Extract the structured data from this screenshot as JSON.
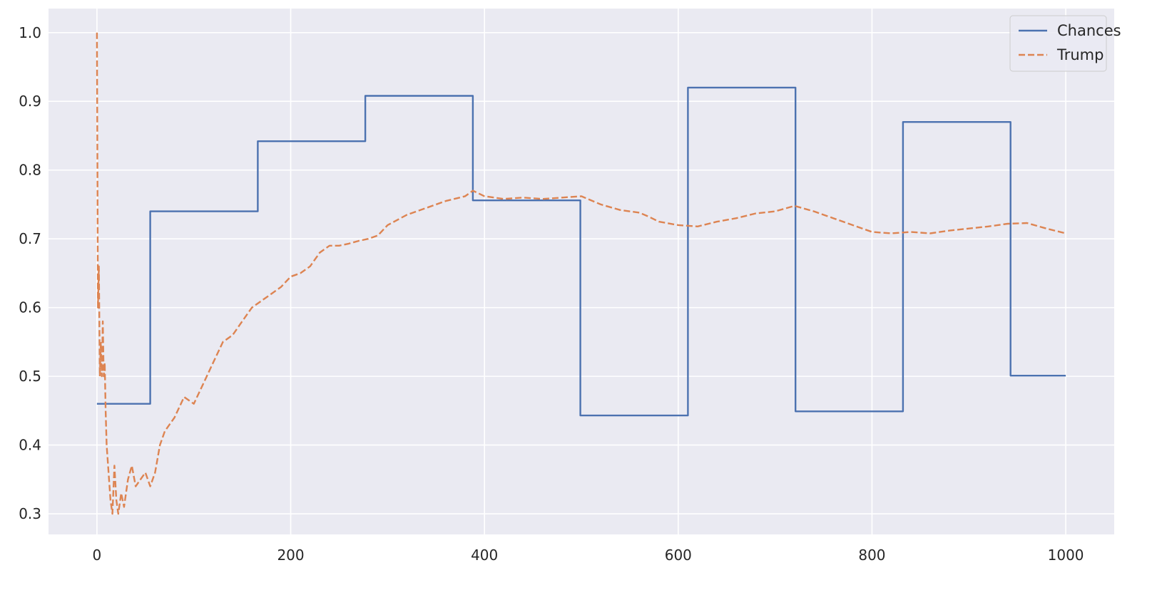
{
  "chart_data": {
    "type": "line",
    "title": "",
    "xlabel": "",
    "ylabel": "",
    "xlim": [
      -50,
      1050
    ],
    "ylim": [
      0.27,
      1.035
    ],
    "xticks": [
      0,
      200,
      400,
      600,
      800,
      1000
    ],
    "yticks": [
      0.3,
      0.4,
      0.5,
      0.6,
      0.7,
      0.8,
      0.9,
      1.0
    ],
    "xtick_labels": [
      "0",
      "200",
      "400",
      "600",
      "800",
      "1000"
    ],
    "ytick_labels": [
      "0.3",
      "0.4",
      "0.5",
      "0.6",
      "0.7",
      "0.8",
      "0.9",
      "1.0"
    ],
    "grid": true,
    "legend_position": "top-right",
    "background": "#eaeaf2",
    "series": [
      {
        "name": "Chances",
        "style": "solid",
        "color": "#4c72b0",
        "x": [
          0,
          55,
          55,
          166,
          166,
          277,
          277,
          388,
          388,
          499,
          499,
          610,
          610,
          721,
          721,
          832,
          832,
          943,
          943,
          1000
        ],
        "y": [
          0.46,
          0.46,
          0.74,
          0.74,
          0.842,
          0.842,
          0.908,
          0.908,
          0.756,
          0.756,
          0.443,
          0.443,
          0.92,
          0.92,
          0.449,
          0.449,
          0.87,
          0.87,
          0.501,
          0.501
        ]
      },
      {
        "name": "Trump",
        "style": "dashed",
        "color": "#dd8452",
        "x": [
          0,
          1,
          2,
          3,
          4,
          5,
          6,
          7,
          8,
          9,
          10,
          12,
          14,
          16,
          18,
          20,
          22,
          25,
          28,
          32,
          36,
          40,
          45,
          50,
          55,
          60,
          65,
          70,
          80,
          90,
          100,
          110,
          120,
          130,
          140,
          150,
          160,
          170,
          180,
          190,
          200,
          210,
          220,
          230,
          240,
          250,
          260,
          270,
          280,
          290,
          300,
          320,
          340,
          360,
          380,
          388,
          400,
          420,
          440,
          460,
          480,
          500,
          520,
          540,
          560,
          570,
          580,
          600,
          620,
          640,
          660,
          680,
          700,
          720,
          740,
          760,
          780,
          800,
          820,
          840,
          860,
          880,
          900,
          920,
          940,
          960,
          980,
          1000
        ],
        "y": [
          1.0,
          0.6,
          0.66,
          0.5,
          0.55,
          0.5,
          0.58,
          0.5,
          0.52,
          0.45,
          0.4,
          0.36,
          0.32,
          0.3,
          0.37,
          0.32,
          0.3,
          0.33,
          0.31,
          0.35,
          0.37,
          0.34,
          0.35,
          0.36,
          0.34,
          0.36,
          0.4,
          0.42,
          0.44,
          0.47,
          0.46,
          0.49,
          0.52,
          0.55,
          0.56,
          0.58,
          0.6,
          0.61,
          0.62,
          0.63,
          0.645,
          0.65,
          0.66,
          0.68,
          0.69,
          0.69,
          0.693,
          0.697,
          0.7,
          0.705,
          0.72,
          0.735,
          0.745,
          0.755,
          0.762,
          0.77,
          0.762,
          0.758,
          0.76,
          0.758,
          0.76,
          0.762,
          0.75,
          0.742,
          0.738,
          0.732,
          0.725,
          0.72,
          0.718,
          0.725,
          0.73,
          0.737,
          0.74,
          0.748,
          0.74,
          0.73,
          0.72,
          0.71,
          0.708,
          0.71,
          0.708,
          0.712,
          0.715,
          0.718,
          0.722,
          0.723,
          0.715,
          0.708
        ]
      }
    ]
  }
}
